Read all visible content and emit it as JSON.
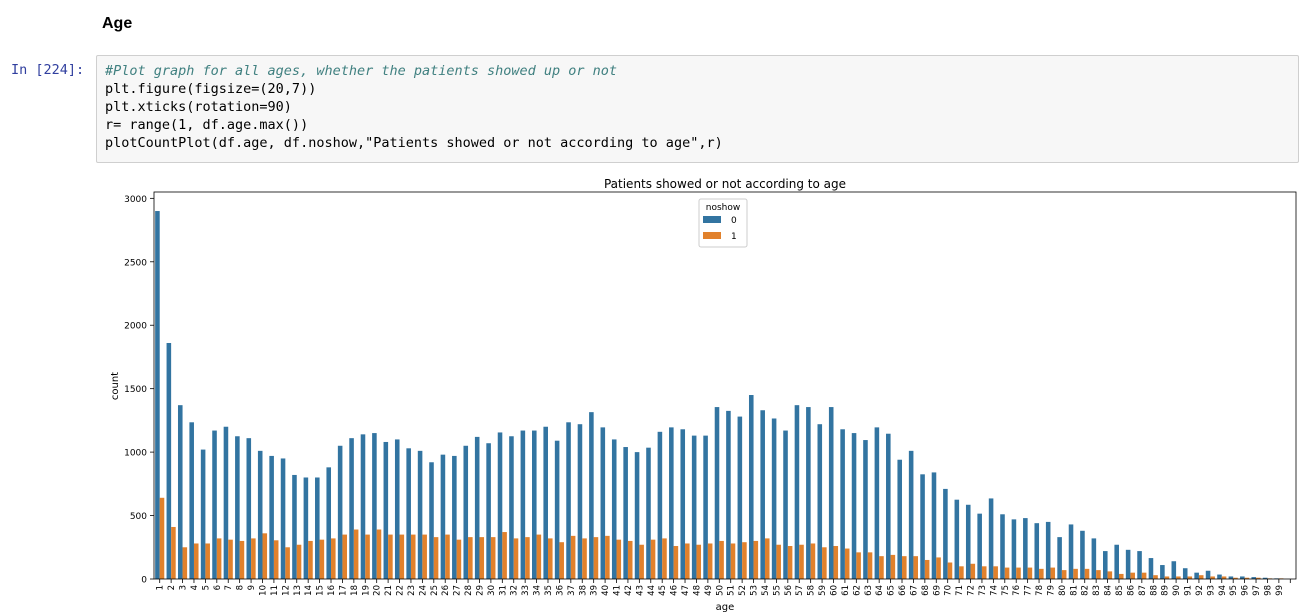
{
  "section_heading": "Age",
  "cell": {
    "prompt": "In [224]:",
    "code_lines": [
      "#Plot graph for all ages, whether the patients showed up or not",
      "plt.figure(figsize=(20,7))",
      "plt.xticks(rotation=90)",
      "r= range(1, df.age.max())",
      "plotCountPlot(df.age, df.noshow,\"Patients showed or not according to age\",r)"
    ]
  },
  "colors": {
    "series_0": "#3274a1",
    "series_1": "#e1812c",
    "cell_bg": "#f7f7f7",
    "prompt": "#303f9f"
  },
  "chart_data": {
    "type": "bar",
    "title": "Patients showed or not according to age",
    "xlabel": "age",
    "ylabel": "count",
    "ylim": [
      0,
      3050
    ],
    "yticks": [
      0,
      500,
      1000,
      1500,
      2000,
      2500,
      3000
    ],
    "legend": {
      "title": "noshow",
      "placement": "top-center"
    },
    "categories": [
      "1",
      "2",
      "3",
      "4",
      "5",
      "6",
      "7",
      "8",
      "9",
      "10",
      "11",
      "12",
      "13",
      "14",
      "15",
      "16",
      "17",
      "18",
      "19",
      "20",
      "21",
      "22",
      "23",
      "24",
      "25",
      "26",
      "27",
      "28",
      "29",
      "30",
      "31",
      "32",
      "33",
      "34",
      "35",
      "36",
      "37",
      "38",
      "39",
      "40",
      "41",
      "42",
      "43",
      "44",
      "45",
      "46",
      "47",
      "48",
      "49",
      "50",
      "51",
      "52",
      "53",
      "54",
      "55",
      "56",
      "57",
      "58",
      "59",
      "60",
      "61",
      "62",
      "63",
      "64",
      "65",
      "66",
      "67",
      "68",
      "69",
      "70",
      "71",
      "72",
      "73",
      "74",
      "75",
      "76",
      "77",
      "78",
      "79",
      "80",
      "81",
      "82",
      "83",
      "84",
      "85",
      "86",
      "87",
      "88",
      "89",
      "90",
      "91",
      "92",
      "93",
      "94",
      "95",
      "96",
      "97",
      "98",
      "99"
    ],
    "series": [
      {
        "name": "0",
        "values": [
          2900,
          1860,
          1370,
          1235,
          1020,
          1170,
          1200,
          1125,
          1110,
          1010,
          970,
          950,
          820,
          800,
          800,
          880,
          1050,
          1110,
          1140,
          1150,
          1080,
          1100,
          1030,
          1010,
          920,
          980,
          970,
          1050,
          1120,
          1070,
          1155,
          1125,
          1170,
          1170,
          1200,
          1090,
          1235,
          1220,
          1315,
          1195,
          1100,
          1040,
          1000,
          1035,
          1160,
          1195,
          1180,
          1130,
          1130,
          1355,
          1325,
          1280,
          1450,
          1330,
          1265,
          1170,
          1370,
          1355,
          1220,
          1355,
          1180,
          1150,
          1095,
          1195,
          1145,
          940,
          1010,
          825,
          840,
          710,
          625,
          585,
          515,
          635,
          510,
          470,
          480,
          440,
          450,
          330,
          430,
          380,
          320,
          220,
          270,
          230,
          220,
          165,
          110,
          140,
          85,
          50,
          65,
          35,
          20,
          20,
          15,
          10,
          5
        ]
      },
      {
        "name": "1",
        "values": [
          640,
          410,
          250,
          280,
          280,
          320,
          310,
          300,
          320,
          360,
          305,
          250,
          270,
          300,
          310,
          320,
          350,
          390,
          350,
          390,
          350,
          350,
          350,
          350,
          330,
          350,
          310,
          330,
          330,
          330,
          370,
          320,
          330,
          350,
          320,
          290,
          340,
          320,
          330,
          340,
          310,
          300,
          270,
          310,
          320,
          260,
          280,
          270,
          280,
          300,
          280,
          290,
          300,
          320,
          270,
          260,
          270,
          280,
          250,
          260,
          240,
          210,
          210,
          180,
          190,
          180,
          180,
          150,
          170,
          130,
          100,
          120,
          100,
          100,
          90,
          90,
          90,
          80,
          90,
          70,
          80,
          80,
          70,
          60,
          40,
          50,
          50,
          30,
          20,
          20,
          20,
          30,
          20,
          20,
          10,
          10,
          10,
          5,
          5
        ]
      }
    ]
  }
}
